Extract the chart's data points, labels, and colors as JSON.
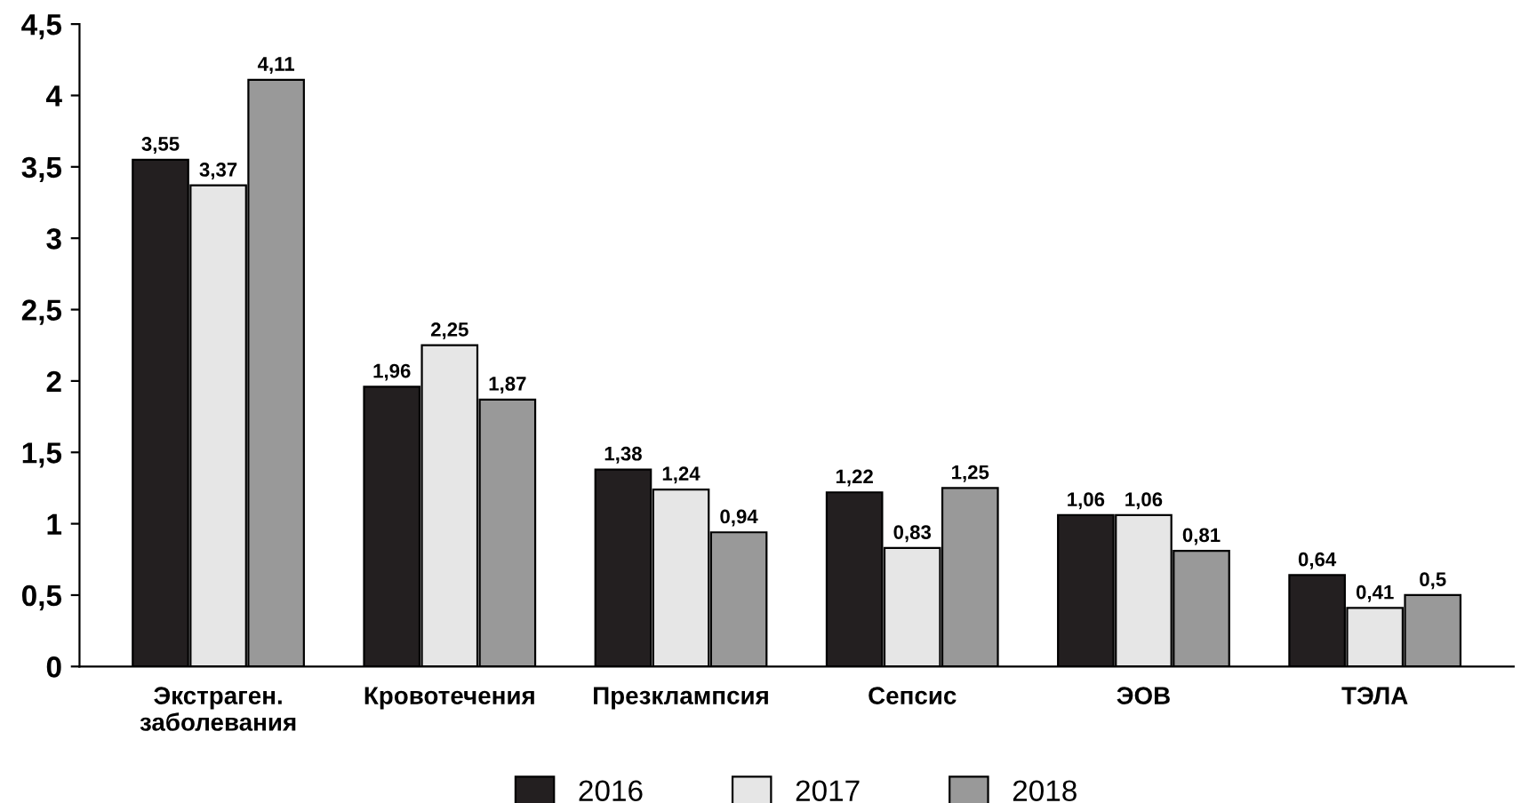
{
  "chart_data": {
    "type": "bar",
    "categories": [
      "Экстраген.\nзаболевания",
      "Кровотечения",
      "Презклампсия",
      "Сепсис",
      "ЭОВ",
      "ТЭЛА"
    ],
    "series": [
      {
        "name": "2016",
        "color": "#231f20",
        "values": [
          3.55,
          1.96,
          1.38,
          1.22,
          1.06,
          0.64
        ],
        "value_labels": [
          "3,55",
          "1,96",
          "1,38",
          "1,22",
          "1,06",
          "0,64"
        ]
      },
      {
        "name": "2017",
        "color": "#e6e6e6",
        "values": [
          3.37,
          2.25,
          1.24,
          0.83,
          1.06,
          0.41
        ],
        "value_labels": [
          "3,37",
          "2,25",
          "1,24",
          "0,83",
          "1,06",
          "0,41"
        ]
      },
      {
        "name": "2018",
        "color": "#999999",
        "values": [
          4.11,
          1.87,
          0.94,
          1.25,
          0.81,
          0.5
        ],
        "value_labels": [
          "4,11",
          "1,87",
          "0,94",
          "1,25",
          "0,81",
          "0,5"
        ]
      }
    ],
    "ylim": [
      0,
      4.5
    ],
    "yticks": [
      0,
      {
        "value": 0.5,
        "label": "0,5"
      },
      1,
      {
        "value": 1.5,
        "label": "1,5"
      },
      2,
      {
        "value": 2.5,
        "label": "2,5"
      },
      3,
      {
        "value": 3.5,
        "label": "3,5"
      },
      4,
      {
        "value": 4.5,
        "label": "4,5"
      }
    ],
    "grid": false,
    "legend": "bottom"
  }
}
